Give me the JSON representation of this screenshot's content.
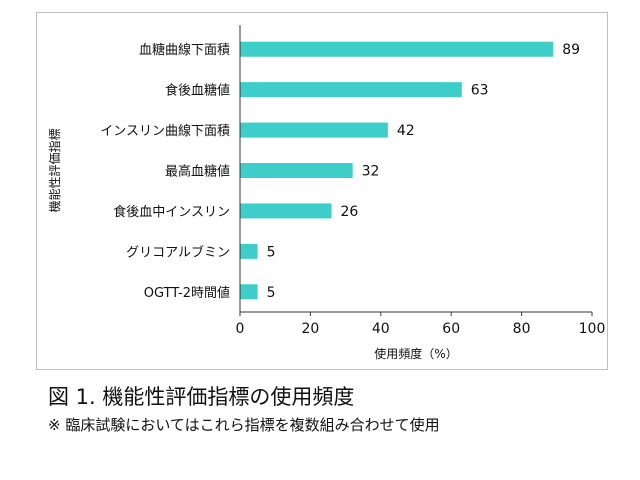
{
  "chart_data": {
    "type": "bar",
    "orientation": "horizontal",
    "categories": [
      "血糖曲線下面積",
      "食後血糖値",
      "インスリン曲線下面積",
      "最高血糖値",
      "食後血中インスリン",
      "グリコアルブミン",
      "OGTT-2時間値"
    ],
    "values": [
      89,
      63,
      42,
      32,
      26,
      5,
      5
    ],
    "xlabel": "使用頻度（%）",
    "ylabel": "機能性評価指標",
    "xlim": [
      0,
      100
    ],
    "xticks": [
      0,
      20,
      40,
      60,
      80,
      100
    ],
    "bar_color": "#3ecdc8",
    "grid": false,
    "data_labels": true
  },
  "caption": {
    "title": "図 1.  機能性評価指標の使用頻度",
    "note": "※ 臨床試験においてはこれら指標を複数組み合わせて使用"
  }
}
